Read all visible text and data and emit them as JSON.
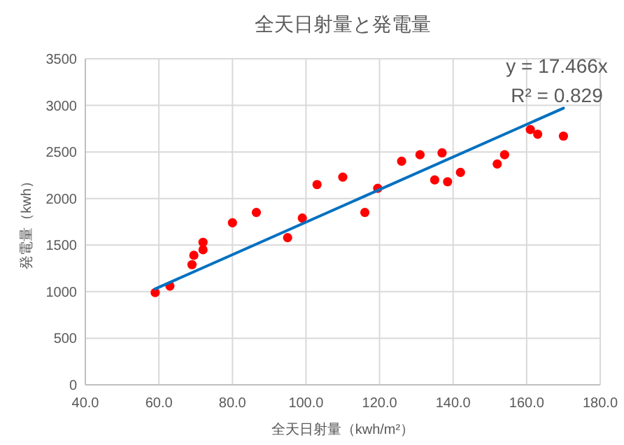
{
  "chart_data": {
    "type": "scatter",
    "title": "全天日射量と発電量",
    "xlabel": "全天日射量（kwh/m²）",
    "ylabel": "発電量（kwh）",
    "annotations": [
      "y = 17.466x",
      "R² = 0.829"
    ],
    "series": [
      {
        "color": "#ff0000",
        "marker": "circle",
        "x": [
          59,
          63,
          69,
          69.5,
          72,
          72,
          80,
          86.5,
          95,
          99,
          103,
          110,
          116,
          119.5,
          126,
          131,
          135,
          137,
          138.5,
          142,
          152,
          154,
          161,
          163,
          170
        ],
        "values": [
          990,
          1060,
          1290,
          1390,
          1450,
          1530,
          1740,
          1850,
          1580,
          1790,
          2150,
          2230,
          1850,
          2110,
          2400,
          2470,
          2200,
          2490,
          2180,
          2280,
          2370,
          2470,
          2740,
          2690,
          2670
        ]
      },
      {
        "type": "line",
        "color": "#0070c0",
        "line_style": "solid",
        "x": [
          59,
          170
        ],
        "values": [
          1030,
          2970
        ]
      }
    ],
    "xlim": [
      40,
      180
    ],
    "xticks": [
      {
        "value": 40,
        "label": "40.0"
      },
      {
        "value": 60,
        "label": "60.0"
      },
      {
        "value": 80,
        "label": "80.0"
      },
      {
        "value": 100,
        "label": "100.0"
      },
      {
        "value": 120,
        "label": "120.0"
      },
      {
        "value": 140,
        "label": "140.0"
      },
      {
        "value": 160,
        "label": "160.0"
      },
      {
        "value": 180,
        "label": "180.0"
      }
    ],
    "ylim": [
      0,
      3500
    ],
    "yticks": [
      0,
      500,
      1000,
      1500,
      2000,
      2500,
      3000,
      3500
    ],
    "grid": true
  }
}
